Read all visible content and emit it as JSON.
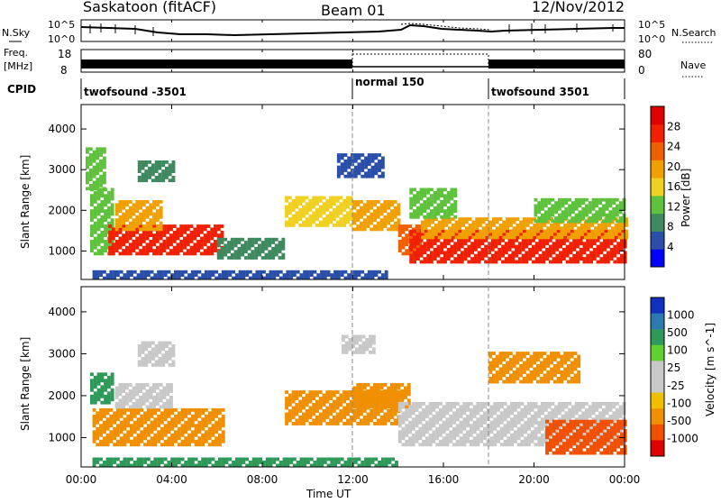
{
  "header": {
    "station": "Saskatoon (fitACF)",
    "beam": "Beam 01",
    "date": "12/Nov/2012"
  },
  "top_panels": {
    "nsky_label": "N.Sky",
    "nsky_ticks": [
      "10^5",
      "10^0"
    ],
    "nsearch_label": "N.Search",
    "nsearch_ticks": [
      "10^5",
      "10^0"
    ],
    "freq_label": "Freq.",
    "freq_unit": "[MHz]",
    "freq_ticks": [
      "18",
      "8"
    ],
    "nave_label": "Nave",
    "nave_ticks": [
      "80",
      "0"
    ],
    "cpid_label": "CPID",
    "cpid_segments": [
      {
        "label": "twofsound -3501",
        "start": 0,
        "end": 12
      },
      {
        "label": "normal 150",
        "start": 12,
        "end": 18
      },
      {
        "label": "twofsound 3501",
        "start": 18,
        "end": 24
      }
    ]
  },
  "colors": {
    "power_scale": [
      "#0000ff",
      "#2a4fa8",
      "#3e8a5e",
      "#5fc23d",
      "#f0d020",
      "#f0a000",
      "#f06000",
      "#f02000",
      "#e00000"
    ],
    "velocity_scale": [
      "#1030c0",
      "#2d7ab0",
      "#2e9a5a",
      "#60d030",
      "#c8c8c8",
      "#c8c8c8",
      "#f0c000",
      "#f09000",
      "#f05000",
      "#e00000"
    ]
  },
  "chart_data": [
    {
      "type": "heatmap",
      "name": "power",
      "ylabel": "Slant Range [km]",
      "yticks": [
        "1000",
        "2000",
        "3000",
        "4000"
      ],
      "ylim": [
        300,
        4600
      ],
      "xlim": [
        0,
        24
      ],
      "colorbar_label": "Power [dB]",
      "colorbar_ticks": [
        "4",
        "8",
        "12",
        "16",
        "20",
        "24",
        "28"
      ],
      "colorbar_range": [
        0,
        32
      ],
      "regions": [
        {
          "t0": 0.4,
          "t1": 1.4,
          "r0": 900,
          "r1": 2500,
          "value": 14
        },
        {
          "t0": 1.2,
          "t1": 6.2,
          "r0": 900,
          "r1": 1600,
          "value": 26
        },
        {
          "t0": 1.5,
          "t1": 3.5,
          "r0": 1500,
          "r1": 2200,
          "value": 18
        },
        {
          "t0": 2.5,
          "t1": 4.0,
          "r0": 2700,
          "r1": 3200,
          "value": 10
        },
        {
          "t0": 0.2,
          "t1": 1.0,
          "r0": 2500,
          "r1": 3500,
          "value": 12
        },
        {
          "t0": 9.0,
          "t1": 12.0,
          "r0": 1600,
          "r1": 2300,
          "value": 16
        },
        {
          "t0": 12.0,
          "t1": 14.0,
          "r0": 1500,
          "r1": 2200,
          "value": 20
        },
        {
          "t0": 14.0,
          "t1": 15.0,
          "r0": 900,
          "r1": 1600,
          "value": 24
        },
        {
          "t0": 14.5,
          "t1": 24.0,
          "r0": 700,
          "r1": 1500,
          "value": 26
        },
        {
          "t0": 15.0,
          "t1": 24.0,
          "r0": 1300,
          "r1": 1800,
          "value": 18
        },
        {
          "t0": 14.5,
          "t1": 16.5,
          "r0": 1800,
          "r1": 2500,
          "value": 12
        },
        {
          "t0": 11.3,
          "t1": 13.3,
          "r0": 2800,
          "r1": 3400,
          "value": 6
        },
        {
          "t0": 0.5,
          "t1": 13.5,
          "r0": 300,
          "r1": 520,
          "value": 5
        },
        {
          "t0": 6.0,
          "t1": 9.0,
          "r0": 800,
          "r1": 1300,
          "value": 8
        },
        {
          "t0": 20.0,
          "t1": 24.0,
          "r0": 1700,
          "r1": 2300,
          "value": 14
        }
      ]
    },
    {
      "type": "heatmap",
      "name": "velocity",
      "ylabel": "Slant Range [km]",
      "yticks": [
        "1000",
        "2000",
        "3000",
        "4000"
      ],
      "ylim": [
        300,
        4600
      ],
      "xlim": [
        0,
        24
      ],
      "xticks": [
        "00:00",
        "04:00",
        "08:00",
        "12:00",
        "16:00",
        "20:00",
        "00:00"
      ],
      "xlabel": "Time UT",
      "colorbar_label": "Velocity [m s^-1]",
      "colorbar_ticks": [
        "1000",
        "500",
        "100",
        "25",
        "-25",
        "-100",
        "-500",
        "-1000"
      ],
      "regions": [
        {
          "t0": 0.4,
          "t1": 1.4,
          "r0": 1800,
          "r1": 2500,
          "value": 100
        },
        {
          "t0": 0.5,
          "t1": 6.3,
          "r0": 800,
          "r1": 1700,
          "value": -300
        },
        {
          "t0": 1.5,
          "t1": 4.0,
          "r0": 1700,
          "r1": 2300,
          "value": 0
        },
        {
          "t0": 2.5,
          "t1": 4.0,
          "r0": 2700,
          "r1": 3300,
          "value": 0
        },
        {
          "t0": 9.0,
          "t1": 14.0,
          "r0": 1300,
          "r1": 2100,
          "value": -200
        },
        {
          "t0": 12.0,
          "t1": 14.5,
          "r0": 1700,
          "r1": 2300,
          "value": -150
        },
        {
          "t0": 14.0,
          "t1": 24.0,
          "r0": 800,
          "r1": 1800,
          "value": 0
        },
        {
          "t0": 20.5,
          "t1": 24.0,
          "r0": 600,
          "r1": 1400,
          "value": -600
        },
        {
          "t0": 18.0,
          "t1": 22.0,
          "r0": 2300,
          "r1": 3000,
          "value": -300
        },
        {
          "t0": 11.5,
          "t1": 13.0,
          "r0": 3000,
          "r1": 3400,
          "value": 0
        },
        {
          "t0": 0.5,
          "t1": 14.0,
          "r0": 300,
          "r1": 500,
          "value": 100
        }
      ]
    }
  ]
}
